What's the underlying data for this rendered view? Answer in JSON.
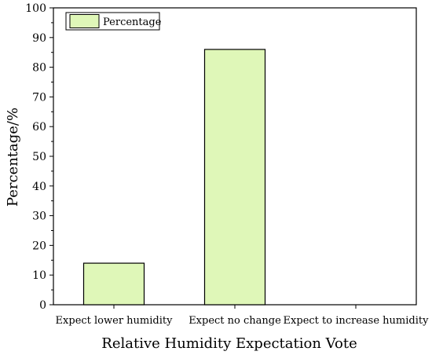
{
  "chart_data": {
    "type": "bar",
    "categories": [
      "Expect lower humidity",
      "Expect no change",
      "Expect to increase humidity"
    ],
    "series": [
      {
        "name": "Percentage",
        "values": [
          14,
          86,
          0
        ]
      }
    ],
    "xlabel": "Relative Humidity Expectation Vote",
    "ylabel": "Percentage/%",
    "ylim": [
      0,
      100
    ],
    "yticks": [
      0,
      10,
      20,
      30,
      40,
      50,
      60,
      70,
      80,
      90,
      100
    ],
    "grid": false,
    "legend_position": "top-left",
    "bar_color": "#dff7b8",
    "edge_color": "#000000"
  }
}
